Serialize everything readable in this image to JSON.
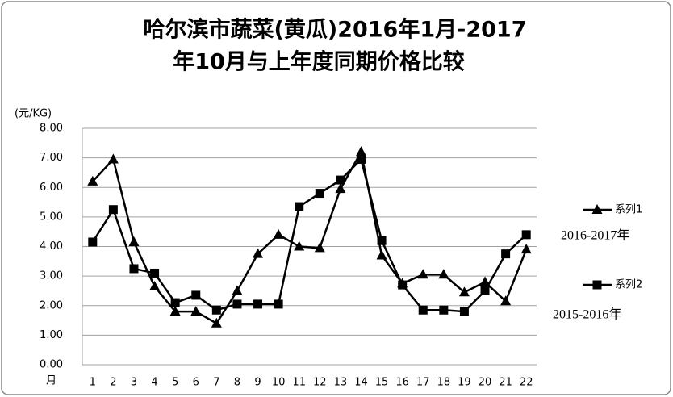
{
  "chart_data": {
    "type": "line",
    "title": [
      "哈尔滨市蔬菜(黄瓜)2016年1月-2017",
      "年10月与上年度同期价格比较"
    ],
    "y_label": "(元/KG)",
    "x_label": "月",
    "categories": [
      "1",
      "2",
      "3",
      "4",
      "5",
      "6",
      "7",
      "8",
      "9",
      "10",
      "11",
      "12",
      "13",
      "14",
      "15",
      "16",
      "17",
      "18",
      "19",
      "20",
      "21",
      "22"
    ],
    "series": [
      {
        "name": "系列1",
        "color": "#000000",
        "marker": "triangle",
        "values": [
          6.2,
          6.95,
          4.15,
          2.65,
          1.8,
          1.8,
          1.4,
          2.5,
          3.75,
          4.4,
          4.0,
          3.95,
          5.95,
          7.2,
          3.7,
          2.75,
          3.05,
          3.05,
          2.45,
          2.8,
          2.15,
          3.9
        ]
      },
      {
        "name": "系列2",
        "color": "#000000",
        "marker": "square",
        "values": [
          4.15,
          5.25,
          3.25,
          3.1,
          2.1,
          2.35,
          1.85,
          2.05,
          2.05,
          2.05,
          5.35,
          5.8,
          6.25,
          6.95,
          4.2,
          2.7,
          1.85,
          1.85,
          1.8,
          2.5,
          3.75,
          4.4
        ]
      }
    ],
    "annotations": [
      "2016-2017年",
      "2015-2016年"
    ],
    "ylim": [
      0,
      8
    ],
    "yticks": [
      {
        "value": 0,
        "label": "0.00"
      },
      {
        "value": 1,
        "label": "1.00"
      },
      {
        "value": 2,
        "label": "2.00"
      },
      {
        "value": 3,
        "label": "3.00"
      },
      {
        "value": 4,
        "label": "4.00"
      },
      {
        "value": 5,
        "label": "5.00"
      },
      {
        "value": 6,
        "label": "6.00"
      },
      {
        "value": 7,
        "label": "7.00"
      },
      {
        "value": 8,
        "label": "8.00"
      }
    ],
    "grid": true,
    "legend": "right"
  }
}
